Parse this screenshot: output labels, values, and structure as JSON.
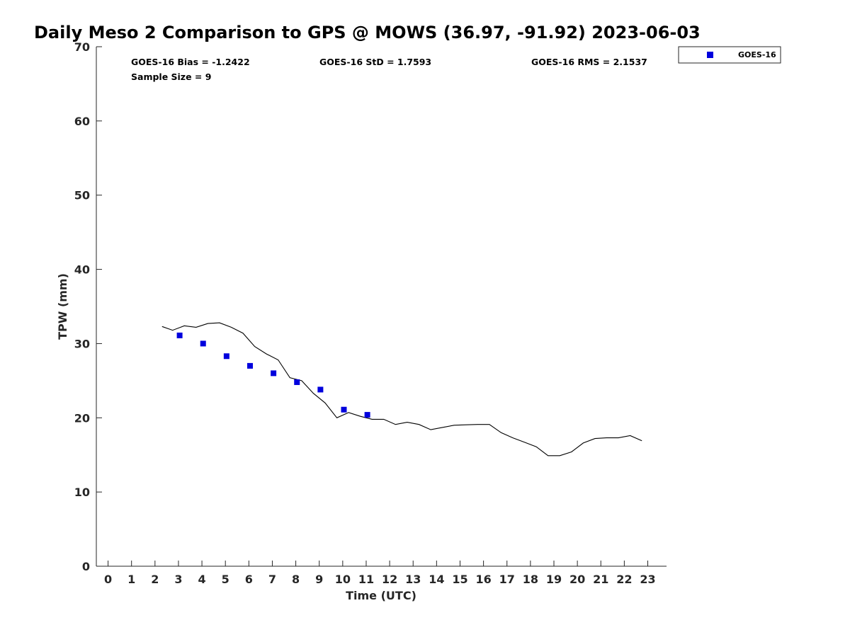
{
  "chart_data": {
    "type": "line",
    "title": "Daily Meso 2 Comparison to GPS @ MOWS (36.97, -91.92) 2023-06-03",
    "xlabel": "Time (UTC)",
    "ylabel": "TPW (mm)",
    "xlim": [
      -0.5,
      23.8
    ],
    "ylim": [
      0,
      70
    ],
    "x_ticks": [
      0,
      1,
      2,
      3,
      4,
      5,
      6,
      7,
      8,
      9,
      10,
      11,
      12,
      13,
      14,
      15,
      16,
      17,
      18,
      19,
      20,
      21,
      22,
      23
    ],
    "y_ticks": [
      0,
      10,
      20,
      30,
      40,
      50,
      60,
      70
    ],
    "grid": false,
    "legend": {
      "position": "top-right-outside",
      "entries": [
        "GOES-16"
      ]
    },
    "stats": {
      "bias": "GOES-16 Bias = -1.2422",
      "std": "GOES-16 StD = 1.7593",
      "rms": "GOES-16 RMS = 2.1537",
      "sample": "Sample Size = 9"
    },
    "series": [
      {
        "kind": "line",
        "color": "#000000",
        "x": [
          2.3,
          2.75,
          3.25,
          3.75,
          4.25,
          4.75,
          5.25,
          5.75,
          6.25,
          6.75,
          7.25,
          7.75,
          8.25,
          8.75,
          9.25,
          9.75,
          10.25,
          10.75,
          11.25,
          11.75,
          12.25,
          12.75,
          13.25,
          13.75,
          14.25,
          14.75,
          15.25,
          15.75,
          16.25,
          16.75,
          17.25,
          17.75,
          18.25,
          18.75,
          19.25,
          19.75,
          20.25,
          20.75,
          21.25,
          21.75,
          22.25,
          22.75
        ],
        "y": [
          32.3,
          31.8,
          32.4,
          32.2,
          32.7,
          32.8,
          32.2,
          31.4,
          29.6,
          28.6,
          27.8,
          25.4,
          25.0,
          23.3,
          22.0,
          20.0,
          20.7,
          20.2,
          19.8,
          19.8,
          19.1,
          19.4,
          19.1,
          18.4,
          18.7,
          19.0,
          19.05,
          19.1,
          19.1,
          18.0,
          17.3,
          16.7,
          16.1,
          14.9,
          14.9,
          15.4,
          16.6,
          17.2,
          17.3,
          17.3,
          17.6,
          16.9
        ]
      },
      {
        "kind": "scatter",
        "name": "GOES-16",
        "color": "#0000dd",
        "x": [
          3.05,
          4.05,
          5.05,
          6.05,
          7.05,
          8.05,
          9.05,
          10.05,
          11.05
        ],
        "y": [
          31.1,
          30.0,
          28.3,
          27.0,
          26.0,
          24.8,
          23.8,
          21.1,
          20.4
        ]
      }
    ]
  }
}
